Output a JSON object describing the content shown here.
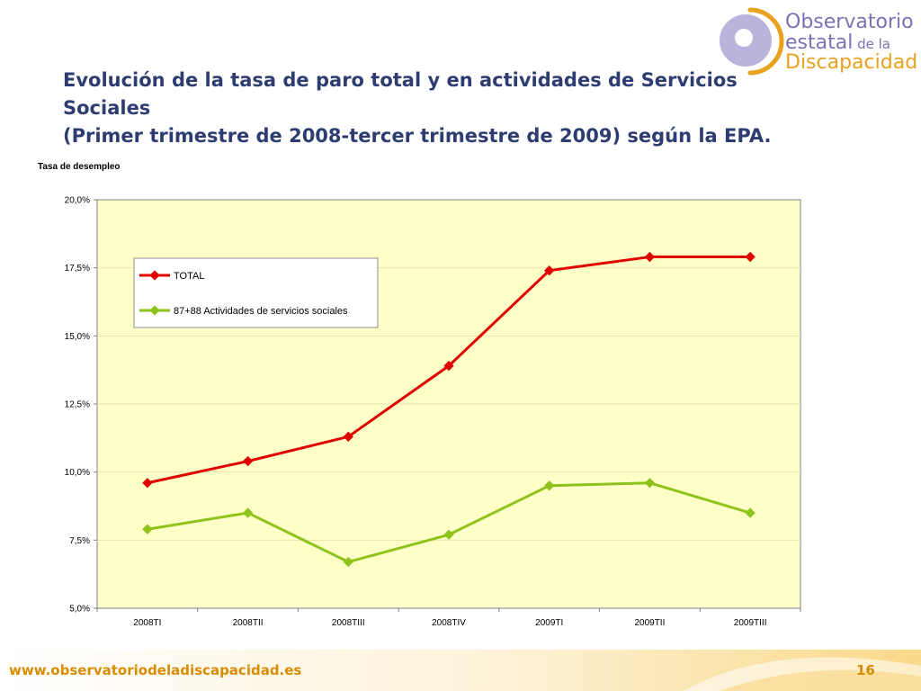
{
  "header": {
    "logo": {
      "line1": "Observatorio",
      "line2_main": "estatal",
      "line2_small": " de la",
      "line3": "Discapacidad"
    },
    "title_line1": "Evolución de la tasa de paro total y en actividades de Servicios Sociales",
    "title_line2": "(Primer trimestre de 2008-tercer trimestre de 2009) según la EPA."
  },
  "colors": {
    "plot_bg": "#ffffc8",
    "total": "#e00000",
    "social": "#8dc31a",
    "title": "#2e3d71",
    "accent": "#e8a21d",
    "logo_purple": "#7b72b5"
  },
  "chart_data": {
    "type": "line",
    "ylabel": "Tasa de desempleo",
    "categories": [
      "2008TI",
      "2008TII",
      "2008TIII",
      "2008TIV",
      "2009TI",
      "2009TII",
      "2009TIII"
    ],
    "ylim": [
      5.0,
      20.0
    ],
    "yticks": [
      "5,0%",
      "7,5%",
      "10,0%",
      "12,5%",
      "15,0%",
      "17,5%",
      "20,0%"
    ],
    "grid": true,
    "legend_position": "top-left",
    "series": [
      {
        "name": "TOTAL",
        "values": [
          9.6,
          10.4,
          11.3,
          13.9,
          17.4,
          17.9,
          17.9
        ]
      },
      {
        "name": "87+88 Actividades de servicios sociales",
        "values": [
          7.9,
          8.5,
          6.7,
          7.7,
          9.5,
          9.6,
          8.5
        ]
      }
    ]
  },
  "footer": {
    "url": "www.observatoriodeladiscapacidad.es",
    "page": "16"
  }
}
